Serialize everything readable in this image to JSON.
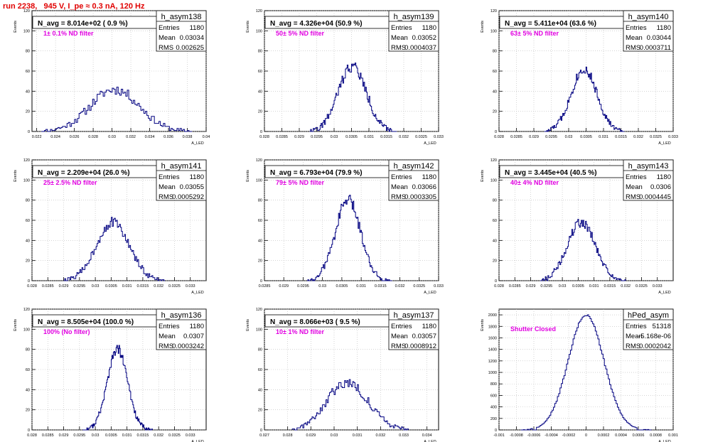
{
  "page": {
    "title": "run 2238,   945 V, I_pe ≈ 0.3 nA, 120 Hz"
  },
  "style": {
    "hist_color": "#000080",
    "annotation_color": "#e000e0",
    "title_color": "#e00000",
    "grid_color": "#bbbbbb"
  },
  "stat_labels": {
    "entries": "Entries",
    "mean": "Mean",
    "rms": "RMS"
  },
  "chart_data": [
    {
      "type": "histogram",
      "name": "h_asym138",
      "title": "N_avg = 8.014e+02 ( 0.9 %)",
      "annotation": "1± 0.1% ND filter",
      "ylabel": "Events",
      "xlabel": "A_LED",
      "stats": {
        "entries": "1180",
        "mean": "0.03034",
        "rms": "0.002625"
      },
      "xlim": [
        0.0215,
        0.04
      ],
      "ylim": [
        0,
        120
      ],
      "xticks": [
        "0.022",
        "0.024",
        "0.026",
        "0.028",
        "0.03",
        "0.032",
        "0.034",
        "0.036",
        "0.038",
        "0.04"
      ],
      "yticks": [
        "0",
        "20",
        "40",
        "60",
        "80",
        "100",
        "120"
      ],
      "grid": true,
      "bins": {
        "center": 0.0303,
        "sigma": 0.0026,
        "peak": 42,
        "noise": 5,
        "range": [
          0.0225,
          0.0385
        ],
        "n": 100,
        "seed": 11
      }
    },
    {
      "type": "histogram",
      "name": "h_asym139",
      "title": "N_avg = 4.326e+04 (50.9 %)",
      "annotation": "50± 5% ND filter",
      "ylabel": "Events",
      "xlabel": "A_LED",
      "stats": {
        "entries": "1180",
        "mean": "0.03052",
        "rms": "0.0004037"
      },
      "xlim": [
        0.028,
        0.033
      ],
      "ylim": [
        0,
        120
      ],
      "xticks": [
        "0.028",
        "0.0285",
        "0.029",
        "0.0295",
        "0.03",
        "0.0305",
        "0.031",
        "0.0315",
        "0.032",
        "0.0325",
        "0.033"
      ],
      "yticks": [
        "0",
        "20",
        "40",
        "60",
        "80",
        "100",
        "120"
      ],
      "grid": true,
      "bins": {
        "center": 0.03052,
        "sigma": 0.0004,
        "peak": 65,
        "noise": 6,
        "range": [
          0.0293,
          0.0318
        ],
        "n": 100,
        "seed": 22
      }
    },
    {
      "type": "histogram",
      "name": "h_asym140",
      "title": "N_avg = 5.411e+04 (63.6 %)",
      "annotation": "63± 5% ND filter",
      "ylabel": "Events",
      "xlabel": "A_LED",
      "stats": {
        "entries": "1180",
        "mean": "0.03044",
        "rms": "0.0003711"
      },
      "xlim": [
        0.028,
        0.033
      ],
      "ylim": [
        0,
        120
      ],
      "xticks": [
        "0.028",
        "0.0285",
        "0.029",
        "0.0295",
        "0.03",
        "0.0305",
        "0.031",
        "0.0315",
        "0.032",
        "0.0325",
        "0.033"
      ],
      "yticks": [
        "0",
        "20",
        "40",
        "60",
        "80",
        "100",
        "120"
      ],
      "grid": true,
      "bins": {
        "center": 0.03044,
        "sigma": 0.00037,
        "peak": 62,
        "noise": 5,
        "range": [
          0.0293,
          0.0316
        ],
        "n": 100,
        "seed": 33
      }
    },
    {
      "type": "histogram",
      "name": "h_asym141",
      "title": "N_avg = 2.209e+04 (26.0 %)",
      "annotation": "25± 2.5% ND filter",
      "ylabel": "Events",
      "xlabel": "A_LED",
      "stats": {
        "entries": "1180",
        "mean": "0.03055",
        "rms": "0.0005292"
      },
      "xlim": [
        0.028,
        0.0335
      ],
      "ylim": [
        0,
        120
      ],
      "xticks": [
        "0.028",
        "0.0285",
        "0.029",
        "0.0295",
        "0.03",
        "0.0305",
        "0.031",
        "0.0315",
        "0.032",
        "0.0325",
        "0.033"
      ],
      "yticks": [
        "0",
        "20",
        "40",
        "60",
        "80",
        "100",
        "120"
      ],
      "grid": true,
      "bins": {
        "center": 0.03055,
        "sigma": 0.00052,
        "peak": 58,
        "noise": 5,
        "range": [
          0.029,
          0.0322
        ],
        "n": 100,
        "seed": 44
      }
    },
    {
      "type": "histogram",
      "name": "h_asym142",
      "title": "N_avg = 6.793e+04 (79.9 %)",
      "annotation": "79± 5% ND filter",
      "ylabel": "Events",
      "xlabel": "A_LED",
      "stats": {
        "entries": "1180",
        "mean": "0.03066",
        "rms": "0.0003305"
      },
      "xlim": [
        0.0285,
        0.033
      ],
      "ylim": [
        0,
        120
      ],
      "xticks": [
        "0.0285",
        "0.029",
        "0.0295",
        "0.03",
        "0.0305",
        "0.031",
        "0.0315",
        "0.032",
        "0.0325",
        "0.033"
      ],
      "yticks": [
        "0",
        "20",
        "40",
        "60",
        "80",
        "100",
        "120"
      ],
      "grid": true,
      "bins": {
        "center": 0.03066,
        "sigma": 0.00033,
        "peak": 80,
        "noise": 6,
        "range": [
          0.0296,
          0.0318
        ],
        "n": 100,
        "seed": 55
      }
    },
    {
      "type": "histogram",
      "name": "h_asym143",
      "title": "N_avg = 3.445e+04 (40.5 %)",
      "annotation": "40± 4% ND filter",
      "ylabel": "Events",
      "xlabel": "A_LED",
      "stats": {
        "entries": "1180",
        "mean": "0.0306",
        "rms": "0.0004445"
      },
      "xlim": [
        0.028,
        0.0335
      ],
      "ylim": [
        0,
        120
      ],
      "xticks": [
        "0.028",
        "0.0285",
        "0.029",
        "0.0295",
        "0.03",
        "0.0305",
        "0.031",
        "0.0315",
        "0.032",
        "0.0325",
        "0.033"
      ],
      "yticks": [
        "0",
        "20",
        "40",
        "60",
        "80",
        "100",
        "120"
      ],
      "grid": true,
      "bins": {
        "center": 0.0306,
        "sigma": 0.00044,
        "peak": 58,
        "noise": 5,
        "range": [
          0.0293,
          0.032
        ],
        "n": 100,
        "seed": 66
      }
    },
    {
      "type": "histogram",
      "name": "h_asym136",
      "title": "N_avg = 8.505e+04 (100.0 %)",
      "annotation": "100% (No filter)",
      "ylabel": "Events",
      "xlabel": "A_LED",
      "stats": {
        "entries": "1180",
        "mean": "0.0307",
        "rms": "0.0003242"
      },
      "xlim": [
        0.028,
        0.0335
      ],
      "ylim": [
        0,
        120
      ],
      "xticks": [
        "0.028",
        "0.0285",
        "0.029",
        "0.0295",
        "0.03",
        "0.0305",
        "0.031",
        "0.0315",
        "0.032",
        "0.0325",
        "0.033"
      ],
      "yticks": [
        "0",
        "20",
        "40",
        "60",
        "80",
        "100",
        "120"
      ],
      "grid": true,
      "bins": {
        "center": 0.0307,
        "sigma": 0.00032,
        "peak": 80,
        "noise": 5,
        "range": [
          0.0296,
          0.0318
        ],
        "n": 100,
        "seed": 77
      }
    },
    {
      "type": "histogram",
      "name": "h_asym137",
      "title": "N_avg = 8.066e+03 ( 9.5 %)",
      "annotation": "10± 1% ND filter",
      "ylabel": "Events",
      "xlabel": "A_LED",
      "stats": {
        "entries": "1180",
        "mean": "0.03057",
        "rms": "0.0008912"
      },
      "xlim": [
        0.027,
        0.0345
      ],
      "ylim": [
        0,
        120
      ],
      "xticks": [
        "0.027",
        "0.028",
        "0.029",
        "0.03",
        "0.031",
        "0.032",
        "0.033",
        "0.034"
      ],
      "yticks": [
        "0",
        "20",
        "40",
        "60",
        "80",
        "100",
        "120"
      ],
      "grid": true,
      "bins": {
        "center": 0.03057,
        "sigma": 0.00089,
        "peak": 47,
        "noise": 5,
        "range": [
          0.0282,
          0.0332
        ],
        "n": 100,
        "seed": 88
      }
    },
    {
      "type": "histogram",
      "name": "hPed_asym",
      "title": "",
      "annotation": "Shutter Closed",
      "ylabel": "Events",
      "xlabel": "A_LED",
      "stats": {
        "entries": "51318",
        "mean": "-5.168e-06",
        "rms": "0.0002042"
      },
      "xlim": [
        -0.001,
        0.001
      ],
      "ylim": [
        0,
        2100
      ],
      "xticks": [
        "-0.001",
        "-0.0008",
        "-0.0006",
        "-0.0004",
        "-0.0002",
        "0",
        "0.0002",
        "0.0004",
        "0.0006",
        "0.0008",
        "0.001"
      ],
      "yticks": [
        "0",
        "200",
        "400",
        "600",
        "800",
        "1000",
        "1200",
        "1400",
        "1600",
        "1800",
        "2000"
      ],
      "grid": true,
      "bins": {
        "center": 0.0,
        "sigma": 0.000204,
        "peak": 2000,
        "noise": 20,
        "range": [
          -0.00075,
          0.00075
        ],
        "n": 100,
        "seed": 99
      }
    }
  ]
}
